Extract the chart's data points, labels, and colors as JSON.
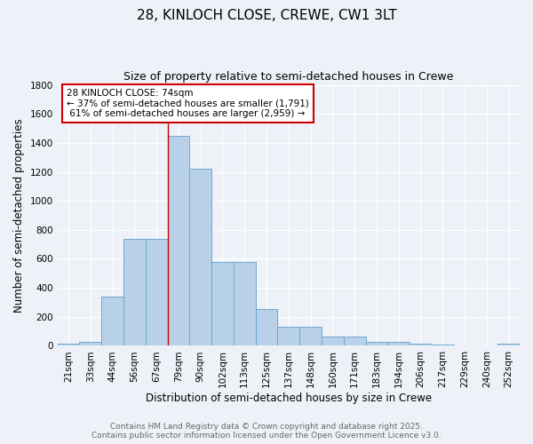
{
  "title": "28, KINLOCH CLOSE, CREWE, CW1 3LT",
  "subtitle": "Size of property relative to semi-detached houses in Crewe",
  "xlabel": "Distribution of semi-detached houses by size in Crewe",
  "ylabel": "Number of semi-detached properties",
  "categories": [
    "21sqm",
    "33sqm",
    "44sqm",
    "56sqm",
    "67sqm",
    "79sqm",
    "90sqm",
    "102sqm",
    "113sqm",
    "125sqm",
    "137sqm",
    "148sqm",
    "160sqm",
    "171sqm",
    "183sqm",
    "194sqm",
    "206sqm",
    "217sqm",
    "229sqm",
    "240sqm",
    "252sqm"
  ],
  "values": [
    15,
    30,
    340,
    740,
    740,
    1450,
    1220,
    580,
    580,
    255,
    130,
    130,
    65,
    65,
    30,
    30,
    15,
    8,
    5,
    5,
    15
  ],
  "bar_color": "#b8d0e8",
  "bar_edge_color": "#6fa8d0",
  "bar_edge_width": 0.7,
  "property_line_x": 4.5,
  "annotation_text": "28 KINLOCH CLOSE: 74sqm\n← 37% of semi-detached houses are smaller (1,791)\n 61% of semi-detached houses are larger (2,959) →",
  "annotation_box_color": "#ffffff",
  "annotation_box_edge_color": "#cc0000",
  "line_color": "#cc0000",
  "ylim": [
    0,
    1800
  ],
  "yticks": [
    0,
    200,
    400,
    600,
    800,
    1000,
    1200,
    1400,
    1600,
    1800
  ],
  "background_color": "#eef2f8",
  "grid_color": "#ffffff",
  "footer_text": "Contains HM Land Registry data © Crown copyright and database right 2025.\nContains public sector information licensed under the Open Government Licence v3.0.",
  "title_fontsize": 11,
  "subtitle_fontsize": 9,
  "axis_label_fontsize": 8.5,
  "tick_fontsize": 7.5,
  "annotation_fontsize": 7.5,
  "footer_fontsize": 6.5
}
